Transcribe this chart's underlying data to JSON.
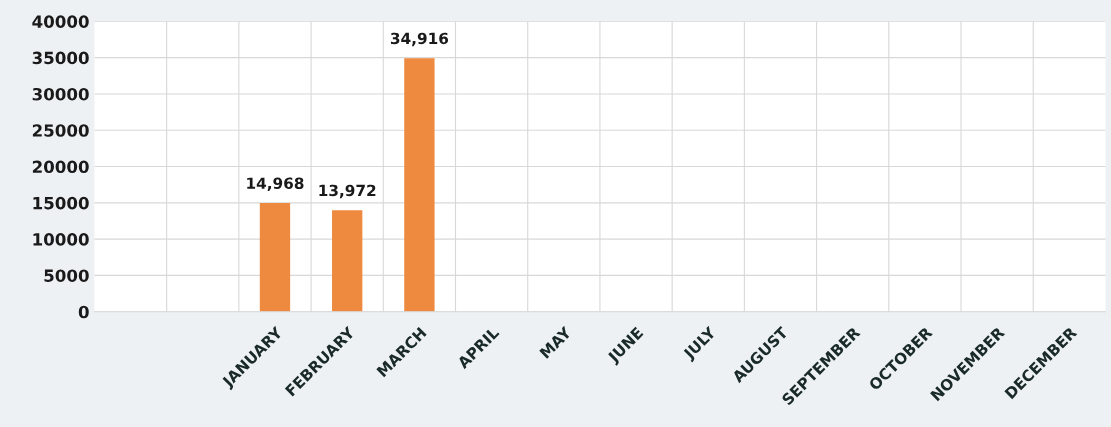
{
  "chart_data": {
    "type": "bar",
    "categories": [
      null,
      null,
      "JANUARY",
      "FEBRUARY",
      "MARCH",
      "APRIL",
      "MAY",
      "JUNE",
      "JULY",
      "AUGUST",
      "SEPTEMBER",
      "OCTOBER",
      "NOVEMBER",
      "DECEMBER"
    ],
    "values": [
      null,
      null,
      14968,
      13972,
      34916,
      null,
      null,
      null,
      null,
      null,
      null,
      null,
      null,
      null
    ],
    "value_labels": [
      null,
      null,
      "14,968",
      "13,972",
      "34,916",
      null,
      null,
      null,
      null,
      null,
      null,
      null,
      null,
      null
    ],
    "color": "#ed8a3f",
    "ylim": [
      0,
      40000
    ],
    "yticks": [
      0,
      5000,
      10000,
      15000,
      20000,
      25000,
      30000,
      35000,
      40000
    ],
    "grid": true
  }
}
